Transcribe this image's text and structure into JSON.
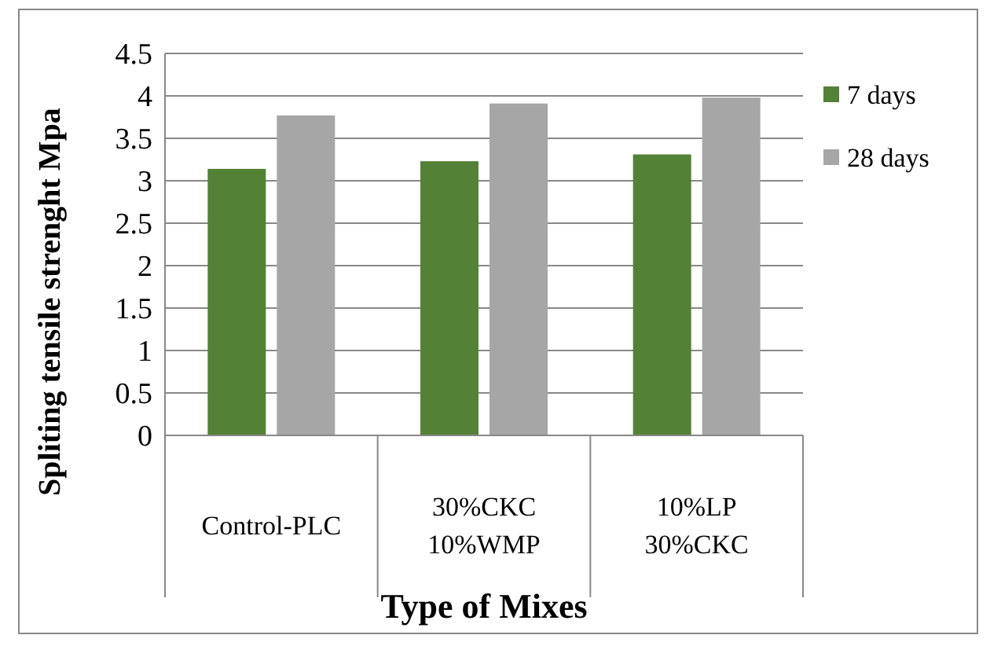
{
  "chart_data": {
    "type": "bar",
    "xlabel": "Type of Mixes",
    "ylabel": "Spliting tensile strenght Mpa",
    "categories": [
      "Control-PLC",
      "30%CKC\n10%WMP",
      "10%LP\n30%CKC"
    ],
    "series": [
      {
        "name": "7 days",
        "color": "#538135",
        "values": [
          3.14,
          3.23,
          3.31
        ]
      },
      {
        "name": "28 days",
        "color": "#a6a6a6",
        "values": [
          3.77,
          3.91,
          3.98
        ]
      }
    ],
    "ylim": [
      0,
      4.5
    ],
    "yticks": [
      0,
      0.5,
      1,
      1.5,
      2,
      2.5,
      3,
      3.5,
      4,
      4.5
    ],
    "grid": "y",
    "legend": "right"
  }
}
